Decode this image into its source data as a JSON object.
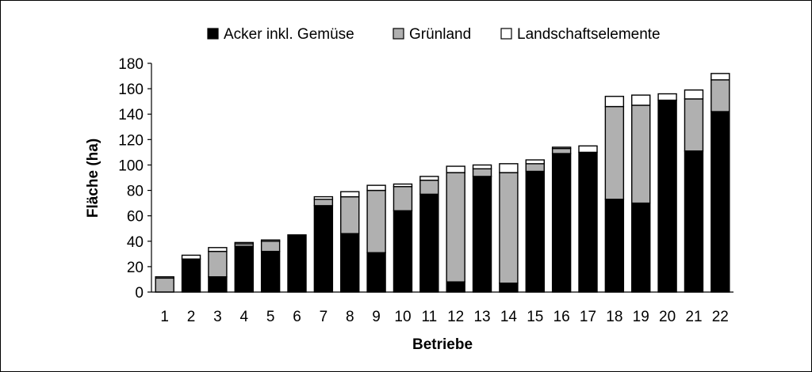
{
  "chart_data": {
    "type": "bar",
    "stacked": true,
    "title": "",
    "xlabel": "Betriebe",
    "ylabel": "Fläche (ha)",
    "ylim": [
      0,
      180
    ],
    "yticks": [
      0,
      20,
      40,
      60,
      80,
      100,
      120,
      140,
      160,
      180
    ],
    "grid": false,
    "legend_position": "top",
    "categories": [
      "1",
      "2",
      "3",
      "4",
      "5",
      "6",
      "7",
      "8",
      "9",
      "10",
      "11",
      "12",
      "13",
      "14",
      "15",
      "16",
      "17",
      "18",
      "19",
      "20",
      "21",
      "22"
    ],
    "series": [
      {
        "name": "Acker inkl. Gemüse",
        "color": "#000000",
        "values": [
          0,
          26,
          12,
          36,
          32,
          45,
          68,
          46,
          31,
          64,
          77,
          8,
          91,
          7,
          95,
          109,
          110,
          73,
          70,
          151,
          111,
          142
        ]
      },
      {
        "name": "Grünland",
        "color": "#b0b0b0",
        "values": [
          11,
          0,
          20,
          2,
          8,
          0,
          5,
          29,
          49,
          19,
          11,
          86,
          6,
          87,
          6,
          4,
          0,
          73,
          77,
          0,
          41,
          25
        ]
      },
      {
        "name": "Landschaftselemente",
        "color": "#ffffff",
        "values": [
          1,
          3,
          3,
          1,
          1,
          0,
          2,
          4,
          4,
          2,
          3,
          5,
          3,
          7,
          3,
          1,
          5,
          8,
          8,
          5,
          7,
          5
        ]
      }
    ]
  }
}
